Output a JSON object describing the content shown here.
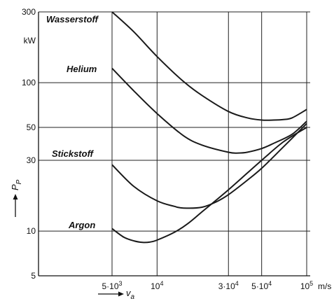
{
  "chart_data": {
    "type": "line",
    "x_scale": "log",
    "y_scale": "log",
    "grid": true,
    "xlabel": "v",
    "xlabel_sub": "a",
    "ylabel": "P",
    "ylabel_sub": "P",
    "x_unit": "m/s",
    "y_unit": "kW",
    "xlim": [
      5000,
      100000
    ],
    "ylim": [
      5,
      300
    ],
    "x_ticks": [
      {
        "value": 5000,
        "label": "5·10",
        "sup": "3"
      },
      {
        "value": 10000,
        "label": "10",
        "sup": "4"
      },
      {
        "value": 30000,
        "label": "3·10",
        "sup": "4"
      },
      {
        "value": 50000,
        "label": "5·10",
        "sup": "4"
      },
      {
        "value": 100000,
        "label": "10",
        "sup": "5"
      }
    ],
    "y_ticks": [
      {
        "value": 5,
        "label": "5"
      },
      {
        "value": 10,
        "label": "10"
      },
      {
        "value": 30,
        "label": "30"
      },
      {
        "value": 50,
        "label": "50"
      },
      {
        "value": 100,
        "label": "100"
      },
      {
        "value": 300,
        "label": "300"
      }
    ],
    "series": [
      {
        "name": "Wasserstoff",
        "x": [
          5000,
          7000,
          10000,
          15000,
          20000,
          30000,
          40000,
          50000,
          60000,
          70000,
          80000,
          100000
        ],
        "y": [
          300,
          220,
          150,
          102,
          82,
          64,
          58,
          56,
          56,
          56.5,
          58,
          66
        ]
      },
      {
        "name": "Helium",
        "x": [
          5000,
          7000,
          10000,
          15000,
          20000,
          30000,
          35000,
          40000,
          50000,
          60000,
          80000,
          100000
        ],
        "y": [
          125,
          88,
          62,
          44,
          38,
          34,
          33.6,
          34,
          36,
          39,
          45,
          55
        ]
      },
      {
        "name": "Stickstoff",
        "x": [
          5000,
          7000,
          10000,
          13000,
          15000,
          20000,
          25000,
          30000,
          40000,
          50000,
          70000,
          100000
        ],
        "y": [
          28,
          20,
          16,
          14.7,
          14.3,
          14.5,
          15.8,
          17.6,
          22,
          26.5,
          37,
          53
        ]
      },
      {
        "name": "Argon",
        "x": [
          5000,
          6000,
          7000,
          8000,
          9000,
          10000,
          13000,
          16000,
          20000,
          30000,
          50000,
          70000,
          100000
        ],
        "y": [
          10.4,
          9.1,
          8.6,
          8.4,
          8.45,
          8.7,
          9.8,
          11.2,
          13.5,
          19,
          30,
          40,
          50
        ]
      }
    ]
  }
}
